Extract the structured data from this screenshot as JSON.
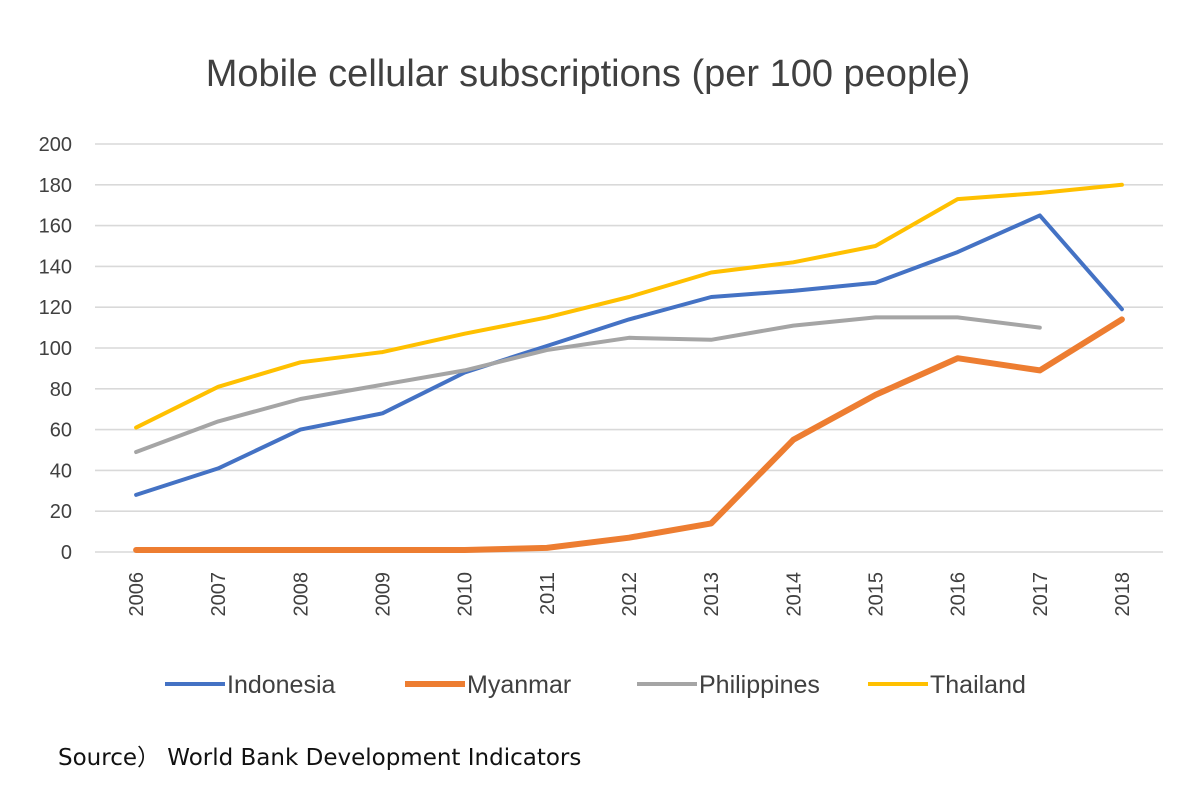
{
  "chart_data": {
    "type": "line",
    "title": "Mobile cellular subscriptions (per 100 people)",
    "xlabel": "",
    "ylabel": "",
    "ylim": [
      0,
      200
    ],
    "yticks": [
      0,
      20,
      40,
      60,
      80,
      100,
      120,
      140,
      160,
      180,
      200
    ],
    "grid": true,
    "legend_position": "bottom",
    "categories": [
      "2006",
      "2007",
      "2008",
      "2009",
      "2010",
      "2011",
      "2012",
      "2013",
      "2014",
      "2015",
      "2016",
      "2017",
      "2018"
    ],
    "series": [
      {
        "name": "Indonesia",
        "color": "#4472C4",
        "values": [
          28,
          41,
          60,
          68,
          88,
          101,
          114,
          125,
          128,
          132,
          147,
          165,
          119
        ]
      },
      {
        "name": "Myanmar",
        "color": "#ED7D31",
        "values": [
          1,
          1,
          1,
          1,
          1,
          2,
          7,
          14,
          55,
          77,
          95,
          89,
          114
        ]
      },
      {
        "name": "Philippines",
        "color": "#A5A5A5",
        "values": [
          49,
          64,
          75,
          82,
          89,
          99,
          105,
          104,
          111,
          115,
          115,
          110,
          null
        ]
      },
      {
        "name": "Thailand",
        "color": "#FFC000",
        "values": [
          61,
          81,
          93,
          98,
          107,
          115,
          125,
          137,
          142,
          150,
          173,
          176,
          180
        ]
      }
    ]
  },
  "source_text": "Source） World Bank Development Indicators"
}
